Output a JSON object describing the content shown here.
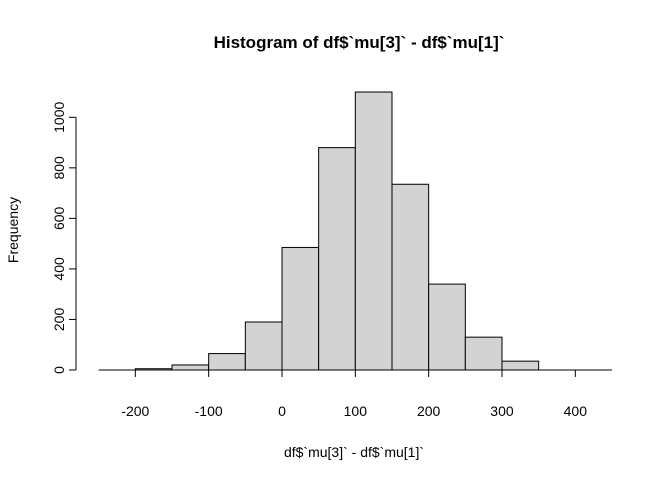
{
  "chart_data": {
    "type": "bar",
    "title": "Histogram of df$`mu[3]` - df$`mu[1]`",
    "xlabel": "df$`mu[3]` - df$`mu[1]`",
    "ylabel": "Frequency",
    "bins": [
      {
        "from": -200,
        "to": -150,
        "count": 5
      },
      {
        "from": -150,
        "to": -100,
        "count": 20
      },
      {
        "from": -100,
        "to": -50,
        "count": 65
      },
      {
        "from": -50,
        "to": 0,
        "count": 190
      },
      {
        "from": 0,
        "to": 50,
        "count": 485
      },
      {
        "from": 50,
        "to": 100,
        "count": 880
      },
      {
        "from": 100,
        "to": 150,
        "count": 1100
      },
      {
        "from": 150,
        "to": 200,
        "count": 735
      },
      {
        "from": 200,
        "to": 250,
        "count": 340
      },
      {
        "from": 250,
        "to": 300,
        "count": 130
      },
      {
        "from": 300,
        "to": 350,
        "count": 35
      }
    ],
    "x_ticks": [
      "-200",
      "-100",
      "0",
      "100",
      "200",
      "300",
      "400"
    ],
    "y_ticks": [
      "0",
      "200",
      "400",
      "600",
      "800",
      "1000"
    ],
    "xlim": [
      -250,
      450
    ],
    "ylim": [
      0,
      1100
    ],
    "bar_color": "#d3d3d3",
    "edge_color": "#000000",
    "grid": false
  }
}
